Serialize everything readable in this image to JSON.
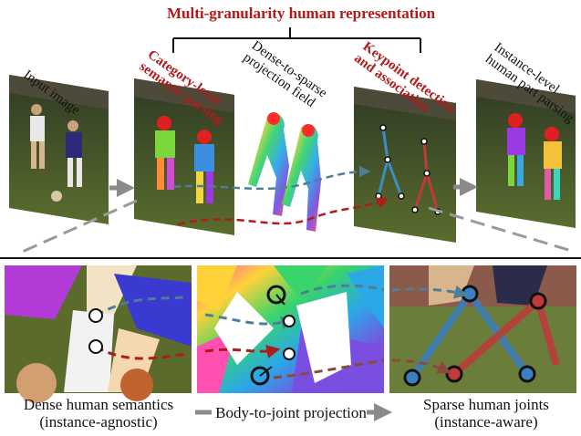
{
  "title": "Multi-granularity human representation",
  "top": {
    "input_image": "Input image",
    "category_level": [
      "Category-level",
      "semantic parsing"
    ],
    "dense_to_sparse": [
      "Dense-to-sparse",
      "projection field"
    ],
    "keypoint": [
      "Keypoint detection",
      "and association"
    ],
    "instance_level": [
      "Instance-level",
      "human part parsing"
    ]
  },
  "bottom": {
    "left_caption": [
      "Dense human semantics",
      "(instance-agnostic)"
    ],
    "middle_caption": "Body-to-joint projection",
    "right_caption": [
      "Sparse human joints",
      "(instance-aware)"
    ]
  },
  "colors": {
    "title_red": "#b01b1b",
    "arrow_gray": "#8a8a8a",
    "path_blue": "#4f7f96",
    "path_red": "#b01b1b",
    "joint_blue": "#3a7fc0",
    "joint_red": "#c03a3a"
  }
}
